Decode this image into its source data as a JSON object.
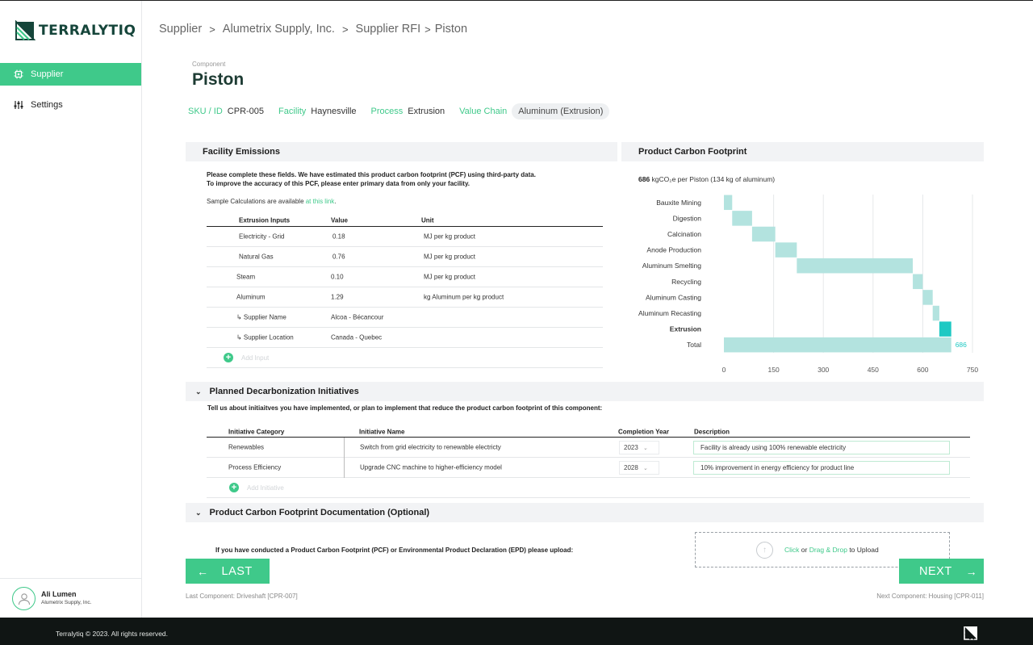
{
  "brand": {
    "name": "TERRALYTIQ",
    "accent": "#3fc98a",
    "dark": "#15453a"
  },
  "sidebar": {
    "items": [
      {
        "label": "Supplier",
        "icon": "chip-icon",
        "active": true
      },
      {
        "label": "Settings",
        "icon": "sliders-icon",
        "active": false
      }
    ],
    "user": {
      "name": "Ali Lumen",
      "org": "Alumetrix Supply, Inc."
    }
  },
  "breadcrumb": [
    "Supplier",
    "Alumetrix Supply, Inc.",
    "Supplier RFI",
    "Piston"
  ],
  "component": {
    "label": "Component",
    "title": "Piston",
    "sku_label": "SKU / ID",
    "sku": "CPR-005",
    "facility_label": "Facility",
    "facility": "Haynesville",
    "process_label": "Process",
    "process": "Extrusion",
    "value_chain_label": "Value Chain",
    "value_chain": "Aluminum (Extrusion)"
  },
  "facility_emissions": {
    "title": "Facility Emissions",
    "note_line1": "Please complete these fields. We have estimated this product carbon footprint (PCF) using third-party data.",
    "note_line2": "To improve the accuracy of this PCF, please enter primary data from only your facility.",
    "sample_text": "Sample Calculations are available ",
    "sample_link": "at this link",
    "sample_end": ".",
    "columns": [
      "Extrusion Inputs",
      "Value",
      "Unit"
    ],
    "rows": [
      {
        "input": "Electricity - Grid",
        "value": "0.18",
        "unit": "MJ per kg product"
      },
      {
        "input": "Natural Gas",
        "value": "0.76",
        "unit": "MJ per kg product"
      },
      {
        "input": "Steam",
        "value": "0.10",
        "unit": "MJ per kg product"
      },
      {
        "input": "Aluminum",
        "value": "1.29",
        "unit": "kg Aluminum per kg product"
      },
      {
        "input": "↳ Supplier Name",
        "value": "Alcoa - Bécancour",
        "unit": ""
      },
      {
        "input": "↳ Supplier Location",
        "value": "Canada - Quebec",
        "unit": ""
      }
    ],
    "add_label": "Add Input"
  },
  "pcf": {
    "title": "Product Carbon Footprint",
    "summary_value": "686",
    "summary_text": " kgCO₂e per Piston (134 kg of aluminum)"
  },
  "chart_data": {
    "type": "bar",
    "subtype": "waterfall-horizontal",
    "categories": [
      "Bauxite Mining",
      "Digestion",
      "Calcination",
      "Anode Production",
      "Aluminum Smelting",
      "Recycling",
      "Aluminum Casting",
      "Aluminum Recasting",
      "Extrusion",
      "Total"
    ],
    "starts": [
      0,
      25,
      85,
      155,
      220,
      570,
      600,
      630,
      650,
      0
    ],
    "values": [
      25,
      60,
      70,
      65,
      350,
      30,
      30,
      20,
      36,
      686
    ],
    "highlight": "Extrusion",
    "xlim": [
      0,
      750
    ],
    "xticks": [
      0,
      150,
      300,
      450,
      600,
      750
    ],
    "total_label": "686",
    "grid": true,
    "colors": {
      "bar": "#b3e3df",
      "highlight": "#1ec9c3",
      "label": "#1ec9c3"
    }
  },
  "initiatives": {
    "title": "Planned Decarbonization Initiatives",
    "note": "Tell us about initiaitves you have implemented, or plan to implement that reduce the product carbon footprint of this component:",
    "columns": [
      "Initiative  Category",
      "Initiative Name",
      "Completion Year",
      "Description"
    ],
    "rows": [
      {
        "category": "Renewables",
        "name": "Switch from grid electricity to renewable electricty",
        "year": "2023",
        "description": "Facility is already using 100% renewable electricity"
      },
      {
        "category": "Process Efficiency",
        "name": "Upgrade CNC machine to higher-efficiency model",
        "year": "2028",
        "description": "10% improvement in energy efficiency for product line"
      }
    ],
    "add_label": "Add Initiative"
  },
  "documentation": {
    "title": "Product Carbon Footprint Documentation (Optional)",
    "note": "If you have conducted a Product Carbon Footprint (PCF) or Environmental Product Declaration (EPD) please upload:",
    "upload_click": "Click",
    "upload_or": " or ",
    "upload_drag": "Drag & Drop",
    "upload_end": " to Upload"
  },
  "nav": {
    "last_label": "LAST",
    "next_label": "NEXT",
    "last_component": "Last Component: Driveshaft [CPR-007]",
    "next_component": "Next Component: Housing [CPR-011]"
  },
  "footer": {
    "copyright": "Terralytiq © 2023. All rights reserved."
  }
}
